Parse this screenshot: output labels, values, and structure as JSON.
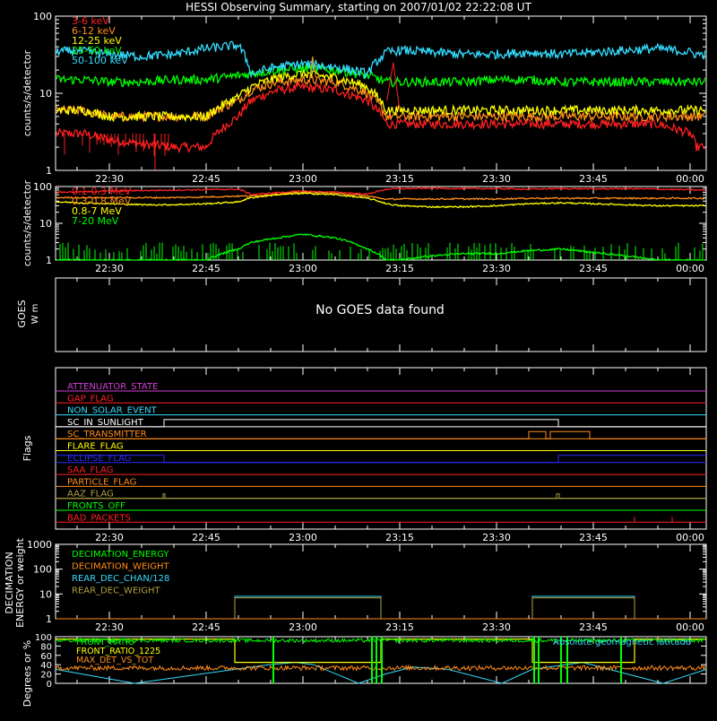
{
  "title": "HESSI Observing Summary, starting on 2007/01/02 22:22:08 UT",
  "time_ticks": [
    "22:30",
    "22:45",
    "23:00",
    "23:15",
    "23:30",
    "23:45",
    "00:00"
  ],
  "colors": {
    "red": "#ff2020",
    "orange": "#ff8c1a",
    "yellow": "#ffff00",
    "green": "#00ff00",
    "cyan": "#33ddff",
    "blue": "#2a2aff",
    "magenta": "#d040d0",
    "olive": "#b0a040"
  },
  "chart_data": [
    {
      "type": "line",
      "title": "HESSI Observing Summary, starting on 2007/01/02 22:22:08 UT",
      "ylabel": "counts/s/detector",
      "yscale": "log",
      "ylim": [
        1,
        100
      ],
      "y_ticks": [
        "100",
        "10",
        "1"
      ],
      "x_ticks": [
        "22:30",
        "22:45",
        "23:00",
        "23:15",
        "23:30",
        "23:45",
        "00:00"
      ],
      "x": [
        "22:22",
        "22:26",
        "22:30",
        "22:35",
        "22:40",
        "22:45",
        "22:50",
        "22:52",
        "22:56",
        "23:00",
        "23:05",
        "23:10",
        "23:13",
        "23:15",
        "23:20",
        "23:25",
        "23:30",
        "23:35",
        "23:40",
        "23:45",
        "23:50",
        "23:55",
        "00:00",
        "00:01"
      ],
      "series": [
        {
          "name": "3-6 keV",
          "color": "red",
          "values": [
            3,
            3,
            2.5,
            2.2,
            2,
            2,
            5,
            8,
            11,
            12,
            11,
            8,
            4,
            4,
            4,
            4,
            4,
            4,
            4,
            4,
            4,
            4,
            3,
            2
          ]
        },
        {
          "name": "6-12 keV",
          "color": "orange",
          "values": [
            6,
            6,
            5,
            5,
            5,
            5,
            8,
            11,
            14,
            15,
            14,
            10,
            5,
            5,
            5,
            5,
            5,
            5,
            5,
            5,
            5,
            5,
            5,
            5
          ]
        },
        {
          "name": "12-25 keV",
          "color": "yellow",
          "values": [
            6,
            6,
            5,
            5,
            5,
            5,
            9,
            12,
            16,
            18,
            16,
            12,
            6,
            6,
            6,
            6,
            6,
            6,
            6,
            6,
            6,
            6,
            6,
            6
          ]
        },
        {
          "name": "25-50 keV",
          "color": "green",
          "values": [
            15,
            15,
            14,
            14,
            15,
            15,
            17,
            18,
            20,
            21,
            20,
            17,
            14,
            14,
            14,
            14,
            15,
            15,
            14,
            14,
            14,
            14,
            14,
            14
          ]
        },
        {
          "name": "50-100 keV",
          "color": "cyan",
          "values": [
            35,
            35,
            32,
            30,
            32,
            38,
            42,
            18,
            22,
            24,
            22,
            18,
            34,
            36,
            34,
            32,
            32,
            34,
            32,
            34,
            36,
            38,
            34,
            32
          ]
        }
      ]
    },
    {
      "type": "line",
      "ylabel": "counts/s/detector",
      "yscale": "log",
      "ylim": [
        1,
        100
      ],
      "y_ticks": [
        "100",
        "10",
        "1"
      ],
      "x_ticks": [
        "22:30",
        "22:45",
        "23:00",
        "23:15",
        "23:30",
        "23:45",
        "00:00"
      ],
      "x": [
        "22:22",
        "22:26",
        "22:30",
        "22:35",
        "22:40",
        "22:45",
        "22:50",
        "22:52",
        "22:56",
        "23:00",
        "23:05",
        "23:10",
        "23:13",
        "23:15",
        "23:20",
        "23:25",
        "23:30",
        "23:35",
        "23:40",
        "23:45",
        "23:50",
        "23:55",
        "00:00",
        "00:01"
      ],
      "series": [
        {
          "name": "0.1-0.3 MeV",
          "color": "red",
          "values": [
            70,
            72,
            75,
            78,
            80,
            82,
            85,
            60,
            68,
            75,
            70,
            62,
            85,
            88,
            90,
            88,
            88,
            85,
            88,
            86,
            88,
            85,
            82,
            80
          ]
        },
        {
          "name": "0.3-0.8 MeV",
          "color": "orange",
          "values": [
            50,
            50,
            50,
            50,
            50,
            52,
            55,
            55,
            62,
            70,
            65,
            55,
            45,
            46,
            46,
            46,
            46,
            48,
            48,
            48,
            48,
            48,
            48,
            48
          ]
        },
        {
          "name": "0.8-7 MeV",
          "color": "yellow",
          "values": [
            38,
            36,
            34,
            32,
            32,
            34,
            38,
            50,
            60,
            65,
            60,
            48,
            34,
            30,
            28,
            28,
            30,
            34,
            36,
            34,
            32,
            30,
            30,
            30
          ]
        },
        {
          "name": "7-20 MeV",
          "color": "green",
          "values": [
            1,
            1,
            1,
            1,
            1,
            1,
            2,
            3,
            4,
            5,
            4,
            2,
            1,
            1,
            1.3,
            1.5,
            1.5,
            1.8,
            2,
            1.6,
            1.3,
            1,
            1,
            1
          ]
        }
      ]
    },
    {
      "type": "line",
      "ylabel": "GOES",
      "ylabel_units": "W m",
      "message": "No GOES data found",
      "x_ticks": [
        "22:30",
        "22:45",
        "23:00",
        "23:15",
        "23:30",
        "23:45",
        "00:00"
      ],
      "series": []
    },
    {
      "type": "line",
      "ylabel": "Flags",
      "x_ticks": [
        "22:30",
        "22:45",
        "23:00",
        "23:15",
        "23:30",
        "23:45",
        "00:00"
      ],
      "flags": [
        {
          "name": "ATTENUATOR_STATE",
          "color": "magenta"
        },
        {
          "name": "GAP_FLAG",
          "color": "red"
        },
        {
          "name": "NON_SOLAR_EVENT",
          "color": "cyan"
        },
        {
          "name": "SC_IN_SUNLIGHT",
          "color": "#ffffff"
        },
        {
          "name": "SC_TRANSMITTER",
          "color": "orange"
        },
        {
          "name": "FLARE_FLAG",
          "color": "yellow"
        },
        {
          "name": "ECLIPSE_FLAG",
          "color": "blue"
        },
        {
          "name": "SAA_FLAG",
          "color": "red"
        },
        {
          "name": "PARTICLE_FLAG",
          "color": "orange"
        },
        {
          "name": "AAZ_FLAG",
          "color": "olive"
        },
        {
          "name": "FRONTS_OFF",
          "color": "green"
        },
        {
          "name": "BAD_PACKETS",
          "color": "red"
        }
      ]
    },
    {
      "type": "line",
      "ylabel": "DECIMATION ENERGY or weight",
      "yscale": "log",
      "ylim": [
        1,
        1000
      ],
      "y_ticks": [
        "1000",
        "100",
        "10",
        "1"
      ],
      "x_ticks": [
        "22:30",
        "22:45",
        "23:00",
        "23:15",
        "23:30",
        "23:45",
        "00:00"
      ],
      "series": [
        {
          "name": "DECIMATION_ENERGY",
          "color": "green"
        },
        {
          "name": "DECIMATION_WEIGHT",
          "color": "orange"
        },
        {
          "name": "REAR_DEC_CHAN/128",
          "color": "cyan"
        },
        {
          "name": "REAR_DEC_WEIGHT",
          "color": "olive"
        }
      ]
    },
    {
      "type": "line",
      "ylabel": "Degrees or %",
      "ylim": [
        0,
        100
      ],
      "y_ticks": [
        "100",
        "80",
        "60",
        "40",
        "20",
        "0"
      ],
      "series": [
        {
          "name": "FRONT_RATIO",
          "color": "green"
        },
        {
          "name": "FRONT_RATIO_1225",
          "color": "yellow"
        },
        {
          "name": "MAX_DET_VS_TOT",
          "color": "orange"
        }
      ],
      "extra_label": {
        "text": "Absolute geomagnetic latitude",
        "color": "cyan"
      }
    }
  ]
}
